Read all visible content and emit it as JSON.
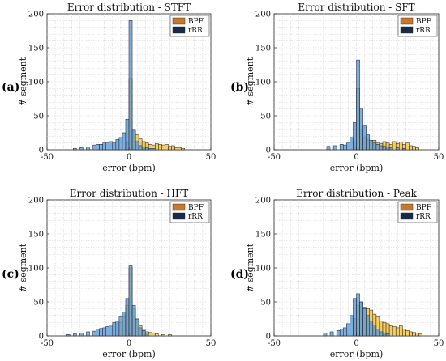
{
  "chart_data": [
    {
      "type": "bar",
      "panel_label": "(a)",
      "title": "Error distribution - STFT",
      "xlabel": "error (bpm)",
      "ylabel": "# segment",
      "xlim": [
        -50,
        50
      ],
      "ylim": [
        0,
        200
      ],
      "xticks": [
        -50,
        0,
        50
      ],
      "yticks": [
        0,
        50,
        100,
        150,
        200
      ],
      "grid": true,
      "legend_placement": "top-right",
      "bin_width": 2,
      "series": [
        {
          "name": "BPF",
          "color": "#f4c542",
          "bins": [
            [
              -2,
              10
            ],
            [
              0,
              105
            ],
            [
              2,
              28
            ],
            [
              4,
              22
            ],
            [
              6,
              16
            ],
            [
              8,
              12
            ],
            [
              10,
              10
            ],
            [
              12,
              8
            ],
            [
              14,
              7
            ],
            [
              16,
              9
            ],
            [
              18,
              8
            ],
            [
              20,
              7
            ],
            [
              22,
              8
            ],
            [
              24,
              5
            ],
            [
              26,
              6
            ],
            [
              28,
              3
            ],
            [
              30,
              3
            ],
            [
              32,
              2
            ]
          ]
        },
        {
          "name": "rRR",
          "color": "#5b9bd5",
          "bins": [
            [
              -34,
              2
            ],
            [
              -30,
              3
            ],
            [
              -26,
              4
            ],
            [
              -22,
              7
            ],
            [
              -20,
              8
            ],
            [
              -18,
              8
            ],
            [
              -16,
              10
            ],
            [
              -14,
              10
            ],
            [
              -12,
              12
            ],
            [
              -10,
              10
            ],
            [
              -8,
              15
            ],
            [
              -6,
              18
            ],
            [
              -4,
              25
            ],
            [
              -2,
              45
            ],
            [
              0,
              190
            ],
            [
              2,
              30
            ],
            [
              4,
              12
            ],
            [
              6,
              6
            ],
            [
              8,
              4
            ],
            [
              10,
              3
            ],
            [
              12,
              2
            ],
            [
              14,
              2
            ]
          ]
        }
      ]
    },
    {
      "type": "bar",
      "panel_label": "(b)",
      "title": "Error distribution - SFT",
      "xlabel": "error (bpm)",
      "ylabel": "# segment",
      "xlim": [
        -50,
        50
      ],
      "ylim": [
        0,
        200
      ],
      "xticks": [
        -50,
        0,
        50
      ],
      "yticks": [
        0,
        50,
        100,
        150,
        200
      ],
      "grid": true,
      "legend_placement": "top-right",
      "bin_width": 2,
      "series": [
        {
          "name": "BPF",
          "color": "#f4c542",
          "bins": [
            [
              -2,
              12
            ],
            [
              0,
              90
            ],
            [
              2,
              30
            ],
            [
              4,
              18
            ],
            [
              6,
              15
            ],
            [
              8,
              12
            ],
            [
              10,
              14
            ],
            [
              12,
              10
            ],
            [
              14,
              9
            ],
            [
              16,
              12
            ],
            [
              18,
              10
            ],
            [
              20,
              8
            ],
            [
              22,
              12
            ],
            [
              24,
              9
            ],
            [
              26,
              11
            ],
            [
              28,
              8
            ],
            [
              30,
              10
            ],
            [
              32,
              6
            ],
            [
              34,
              5
            ],
            [
              36,
              3
            ]
          ]
        },
        {
          "name": "rRR",
          "color": "#5b9bd5",
          "bins": [
            [
              -18,
              5
            ],
            [
              -14,
              6
            ],
            [
              -10,
              8
            ],
            [
              -8,
              7
            ],
            [
              -6,
              10
            ],
            [
              -4,
              18
            ],
            [
              -2,
              40
            ],
            [
              0,
              132
            ],
            [
              2,
              60
            ],
            [
              4,
              35
            ],
            [
              6,
              22
            ],
            [
              8,
              14
            ],
            [
              10,
              10
            ],
            [
              12,
              8
            ],
            [
              14,
              6
            ],
            [
              16,
              5
            ],
            [
              18,
              4
            ],
            [
              20,
              3
            ],
            [
              24,
              3
            ],
            [
              28,
              2
            ]
          ]
        }
      ]
    },
    {
      "type": "bar",
      "panel_label": "(c)",
      "title": "Error distribution - HFT",
      "xlabel": "error (bpm)",
      "ylabel": "# segment",
      "xlim": [
        -50,
        50
      ],
      "ylim": [
        0,
        200
      ],
      "xticks": [
        -50,
        0,
        50
      ],
      "yticks": [
        0,
        50,
        100,
        150,
        200
      ],
      "grid": true,
      "legend_placement": "top-right",
      "bin_width": 2,
      "series": [
        {
          "name": "BPF",
          "color": "#f4c542",
          "bins": [
            [
              -6,
              20
            ],
            [
              -4,
              28
            ],
            [
              -2,
              45
            ],
            [
              0,
              100
            ],
            [
              2,
              40
            ],
            [
              4,
              25
            ],
            [
              6,
              15
            ],
            [
              8,
              10
            ],
            [
              10,
              6
            ],
            [
              12,
              5
            ],
            [
              14,
              4
            ],
            [
              16,
              3
            ],
            [
              20,
              2
            ],
            [
              24,
              2
            ]
          ]
        },
        {
          "name": "rRR",
          "color": "#5b9bd5",
          "bins": [
            [
              -38,
              2
            ],
            [
              -34,
              3
            ],
            [
              -30,
              4
            ],
            [
              -26,
              6
            ],
            [
              -22,
              7
            ],
            [
              -20,
              10
            ],
            [
              -18,
              11
            ],
            [
              -16,
              12
            ],
            [
              -14,
              14
            ],
            [
              -12,
              16
            ],
            [
              -10,
              20
            ],
            [
              -8,
              22
            ],
            [
              -6,
              28
            ],
            [
              -4,
              35
            ],
            [
              -2,
              55
            ],
            [
              0,
              103
            ],
            [
              2,
              45
            ],
            [
              4,
              25
            ],
            [
              6,
              12
            ],
            [
              8,
              8
            ],
            [
              10,
              4
            ]
          ]
        }
      ]
    },
    {
      "type": "bar",
      "panel_label": "(d)",
      "title": "Error distribution - Peak",
      "xlabel": "error (bpm)",
      "ylabel": "# segment",
      "xlim": [
        -50,
        50
      ],
      "ylim": [
        0,
        200
      ],
      "xticks": [
        -50,
        0,
        50
      ],
      "yticks": [
        0,
        50,
        100,
        150,
        200
      ],
      "grid": true,
      "legend_placement": "top-right",
      "bin_width": 2,
      "series": [
        {
          "name": "BPF",
          "color": "#f4c542",
          "bins": [
            [
              -2,
              25
            ],
            [
              0,
              45
            ],
            [
              2,
              50
            ],
            [
              4,
              42
            ],
            [
              6,
              40
            ],
            [
              8,
              38
            ],
            [
              10,
              32
            ],
            [
              12,
              28
            ],
            [
              14,
              22
            ],
            [
              16,
              20
            ],
            [
              18,
              18
            ],
            [
              20,
              15
            ],
            [
              22,
              14
            ],
            [
              24,
              12
            ],
            [
              26,
              15
            ],
            [
              28,
              10
            ],
            [
              30,
              8
            ],
            [
              32,
              6
            ],
            [
              34,
              5
            ],
            [
              36,
              4
            ],
            [
              38,
              3
            ]
          ]
        },
        {
          "name": "rRR",
          "color": "#5b9bd5",
          "bins": [
            [
              -20,
              4
            ],
            [
              -16,
              6
            ],
            [
              -12,
              8
            ],
            [
              -10,
              10
            ],
            [
              -8,
              12
            ],
            [
              -6,
              18
            ],
            [
              -4,
              30
            ],
            [
              -2,
              55
            ],
            [
              0,
              62
            ],
            [
              2,
              50
            ],
            [
              4,
              40
            ],
            [
              6,
              30
            ],
            [
              8,
              22
            ],
            [
              10,
              16
            ],
            [
              12,
              10
            ],
            [
              14,
              6
            ],
            [
              16,
              4
            ],
            [
              18,
              3
            ]
          ]
        }
      ]
    }
  ]
}
